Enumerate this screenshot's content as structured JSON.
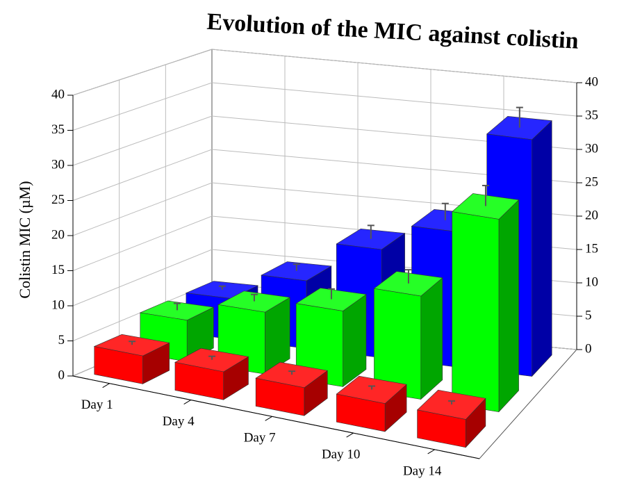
{
  "chart_data": {
    "type": "bar3d",
    "title": "Evolution of the MIC against colistin",
    "y_label": "Colistin MIC (µM)",
    "categories": [
      "Day 1",
      "Day 4",
      "Day 7",
      "Day 10",
      "Day 14"
    ],
    "series": [
      {
        "color": "#ff0000",
        "values": [
          4,
          4,
          4,
          4,
          4
        ],
        "errors": [
          0.5,
          0.5,
          0.5,
          0.5,
          0.5
        ]
      },
      {
        "color": "#00ff00",
        "values": [
          6,
          9,
          11,
          15,
          28
        ],
        "errors": [
          1,
          1,
          1.5,
          2,
          3
        ]
      },
      {
        "color": "#0000ff",
        "values": [
          6,
          10,
          16,
          20,
          35
        ],
        "errors": [
          0.5,
          1,
          2,
          2.5,
          3
        ]
      }
    ],
    "ylim": [
      0,
      40
    ],
    "yticks": [
      0,
      5,
      10,
      15,
      20,
      25,
      30,
      35,
      40
    ],
    "grid": true
  }
}
